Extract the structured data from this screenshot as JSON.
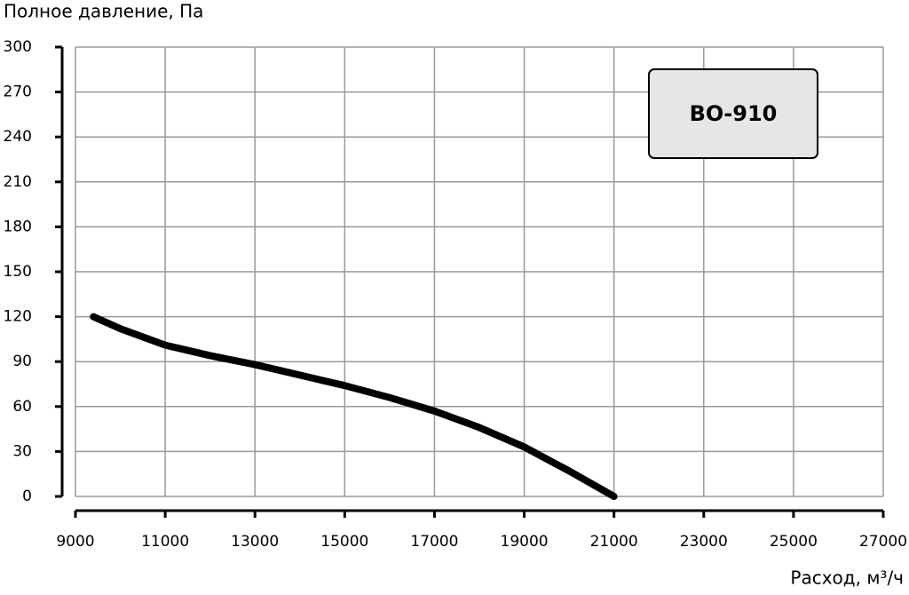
{
  "chart_data": {
    "type": "line",
    "y_label": "Полное давление, Па",
    "x_label": "Расход, м³/ч",
    "series": [
      {
        "name": "ВО-910",
        "color": "#000000",
        "x": [
          9400,
          10000,
          11000,
          12000,
          13000,
          14000,
          15000,
          16000,
          17000,
          18000,
          19000,
          20000,
          21000
        ],
        "values": [
          120,
          112,
          101,
          94,
          88,
          81,
          74,
          66,
          57,
          46,
          33,
          17,
          0
        ]
      }
    ],
    "xlim": [
      9000,
      27000
    ],
    "xticks": [
      9000,
      11000,
      13000,
      15000,
      17000,
      19000,
      21000,
      23000,
      25000,
      27000
    ],
    "ylim": [
      0,
      300
    ],
    "yticks": [
      0,
      30,
      60,
      90,
      120,
      150,
      180,
      210,
      240,
      270,
      300
    ],
    "grid": true
  }
}
